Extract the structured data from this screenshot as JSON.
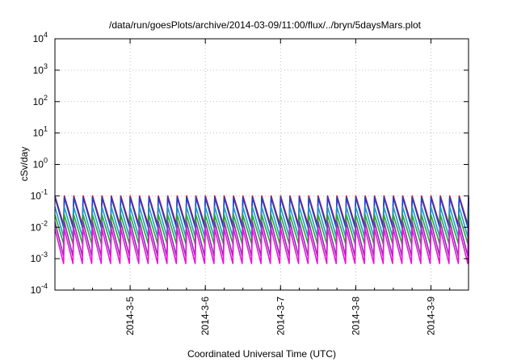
{
  "chart_data": {
    "type": "line",
    "title": "/data/run/goesPlots/archive/2014-03-09/11:00/flux/../bryn/5daysMars.plot",
    "xlabel": "Coordinated Universal Time (UTC)",
    "ylabel": "cSv/day",
    "yscale": "log",
    "ylim": [
      0.0001,
      10000
    ],
    "y_ticks": [
      {
        "base": "10",
        "exp": "-4"
      },
      {
        "base": "10",
        "exp": "-3"
      },
      {
        "base": "10",
        "exp": "-2"
      },
      {
        "base": "10",
        "exp": "-1"
      },
      {
        "base": "10",
        "exp": "0"
      },
      {
        "base": "10",
        "exp": "1"
      },
      {
        "base": "10",
        "exp": "2"
      },
      {
        "base": "10",
        "exp": "3"
      },
      {
        "base": "10",
        "exp": "4"
      }
    ],
    "xlim": [
      "2014-03-04T00:00",
      "2014-03-09T12:00"
    ],
    "x_ticks": [
      "2014-3-5",
      "2014-3-6",
      "2014-3-7",
      "2014-3-8",
      "2014-3-9"
    ],
    "grid": true,
    "period_hours": 3,
    "series": [
      {
        "color": "#dd1111",
        "peak": 0.1,
        "trough": 0.012
      },
      {
        "color": "#1a3fd6",
        "peak": 0.09,
        "trough": 0.01
      },
      {
        "color": "#2299cc",
        "peak": 0.045,
        "trough": 0.005
      },
      {
        "color": "#22aa33",
        "peak": 0.025,
        "trough": 0.003
      },
      {
        "color": "#8833aa",
        "peak": 0.015,
        "trough": 0.0012
      },
      {
        "color": "#ee11dd",
        "peak": 0.009,
        "trough": 0.0007
      }
    ]
  }
}
